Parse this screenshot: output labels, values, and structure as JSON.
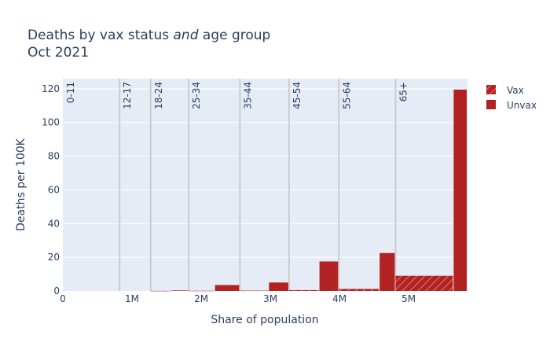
{
  "chart_data": {
    "type": "bar",
    "title_line1_pre": "Deaths by vax status ",
    "title_line1_em": "and",
    "title_line1_post": " age group",
    "title_line2": "Oct 2021",
    "xlabel": "Share of population",
    "ylabel": "Deaths per 100K",
    "xlim": [
      0,
      5.85
    ],
    "ylim": [
      0,
      126
    ],
    "x_ticks": [
      {
        "value": 0,
        "label": "0"
      },
      {
        "value": 1,
        "label": "1M"
      },
      {
        "value": 2,
        "label": "2M"
      },
      {
        "value": 3,
        "label": "3M"
      },
      {
        "value": 4,
        "label": "4M"
      },
      {
        "value": 5,
        "label": "5M"
      }
    ],
    "y_ticks": [
      0,
      20,
      40,
      60,
      80,
      100,
      120
    ],
    "x_unit": "millions of people",
    "grid": true,
    "legend_position": "top-right",
    "colors": {
      "bar": "#b22222",
      "hatch": "#e07070",
      "plot_bg": "#e5ecf6",
      "group_line": "#cccccc",
      "text": "#2a3f5f"
    },
    "age_groups": [
      {
        "label": "0-11",
        "start": 0.0
      },
      {
        "label": "12-17",
        "start": 0.82
      },
      {
        "label": "18-24",
        "start": 1.27
      },
      {
        "label": "25-34",
        "start": 1.82
      },
      {
        "label": "35-44",
        "start": 2.56
      },
      {
        "label": "45-54",
        "start": 3.27
      },
      {
        "label": "55-64",
        "start": 3.99
      },
      {
        "label": "65+",
        "start": 4.81
      }
    ],
    "series": [
      {
        "name": "Vax",
        "pattern": "hatched",
        "bars": [
          {
            "group": "0-11",
            "x0": 0.0,
            "x1": 0.6,
            "value": 0.0
          },
          {
            "group": "12-17",
            "x0": 0.82,
            "x1": 1.05,
            "value": 0.0
          },
          {
            "group": "18-24",
            "x0": 1.27,
            "x1": 1.57,
            "value": 0.05
          },
          {
            "group": "25-34",
            "x0": 1.82,
            "x1": 2.2,
            "value": 0.1
          },
          {
            "group": "35-44",
            "x0": 2.56,
            "x1": 2.98,
            "value": 0.2
          },
          {
            "group": "45-54",
            "x0": 3.27,
            "x1": 3.71,
            "value": 0.5
          },
          {
            "group": "55-64",
            "x0": 3.99,
            "x1": 4.58,
            "value": 1.2
          },
          {
            "group": "65+",
            "x0": 4.81,
            "x1": 5.65,
            "value": 9.0
          }
        ]
      },
      {
        "name": "Unvax",
        "pattern": "solid",
        "bars": [
          {
            "group": "0-11",
            "x0": 0.6,
            "x1": 0.82,
            "value": 0.0
          },
          {
            "group": "12-17",
            "x0": 1.05,
            "x1": 1.27,
            "value": 0.0
          },
          {
            "group": "18-24",
            "x0": 1.57,
            "x1": 1.82,
            "value": 0.3
          },
          {
            "group": "25-34",
            "x0": 2.2,
            "x1": 2.56,
            "value": 3.5
          },
          {
            "group": "35-44",
            "x0": 2.98,
            "x1": 3.27,
            "value": 5.0
          },
          {
            "group": "45-54",
            "x0": 3.71,
            "x1": 3.99,
            "value": 17.5
          },
          {
            "group": "55-64",
            "x0": 4.58,
            "x1": 4.81,
            "value": 22.5
          },
          {
            "group": "65+",
            "x0": 5.65,
            "x1": 5.85,
            "value": 119.5
          }
        ]
      }
    ]
  }
}
